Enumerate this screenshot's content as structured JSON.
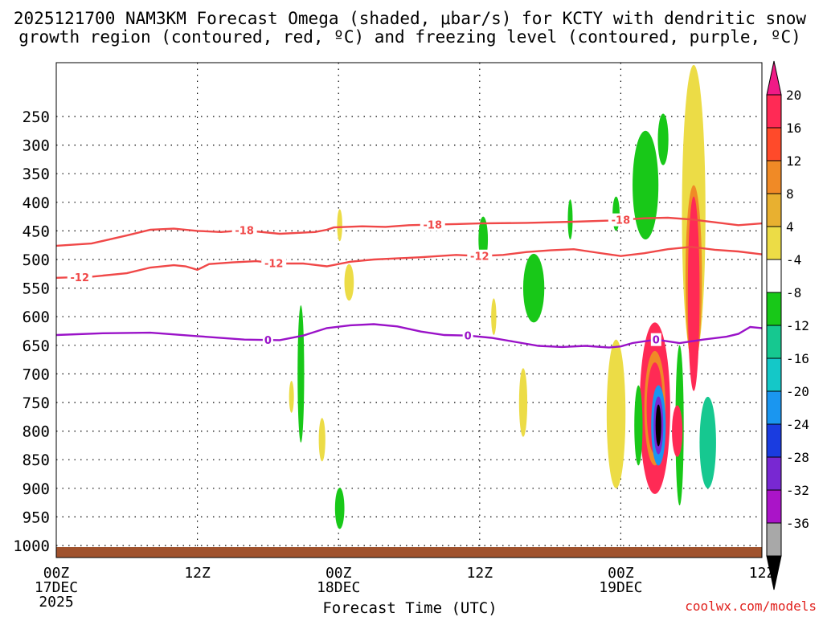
{
  "chart_data": {
    "type": "heatmap",
    "title_line1": "2025121700 NAM3KM Forecast Omega (shaded, μbar/s) for KCTY with dendritic snow",
    "title_line2": "growth region (contoured, red, ºC) and freezing level (contoured, purple, ºC)",
    "xlabel": "Forecast Time (UTC)",
    "credit": "coolwx.com/models",
    "x_ticks": [
      {
        "hour": 0,
        "l1": "00Z",
        "l2": "17DEC",
        "l3": "2025"
      },
      {
        "hour": 12,
        "l1": "12Z",
        "l2": "",
        "l3": ""
      },
      {
        "hour": 24,
        "l1": "00Z",
        "l2": "18DEC",
        "l3": ""
      },
      {
        "hour": 36,
        "l1": "12Z",
        "l2": "",
        "l3": ""
      },
      {
        "hour": 48,
        "l1": "00Z",
        "l2": "19DEC",
        "l3": ""
      },
      {
        "hour": 60,
        "l1": "12Z",
        "l2": "",
        "l3": ""
      }
    ],
    "xlim_hours": [
      0,
      60
    ],
    "y_ticks": [
      250,
      300,
      350,
      400,
      450,
      500,
      550,
      600,
      650,
      700,
      750,
      800,
      850,
      900,
      950,
      1000
    ],
    "ylim_hpa": [
      190,
      1040
    ],
    "colorbar": {
      "labels": [
        "20",
        "16",
        "12",
        "8",
        "4",
        "-4",
        "-8",
        "-12",
        "-16",
        "-20",
        "-24",
        "-28",
        "-32",
        "-36"
      ],
      "colors": [
        "#ff2a55",
        "#ff4a2a",
        "#f08a26",
        "#e8b030",
        "#ecdc46",
        "#ffffff",
        "#18c818",
        "#16c890",
        "#14c8c8",
        "#1a96f0",
        "#1a3ce0",
        "#7828d2",
        "#aa14c8",
        "#a8a8a8"
      ],
      "top_arrow": "#f01a86",
      "bottom_arrow": "#000000"
    },
    "contours": {
      "minus18": {
        "color": "#f04848",
        "label": "-18",
        "points": [
          [
            0,
            476
          ],
          [
            3,
            472
          ],
          [
            6,
            458
          ],
          [
            8,
            448
          ],
          [
            10,
            446
          ],
          [
            12,
            450
          ],
          [
            14,
            452
          ],
          [
            16,
            449
          ],
          [
            19,
            455
          ],
          [
            22,
            452
          ],
          [
            23,
            448
          ],
          [
            23.6,
            444
          ],
          [
            26,
            442
          ],
          [
            28,
            443
          ],
          [
            30,
            440
          ],
          [
            32,
            439
          ],
          [
            34,
            438
          ],
          [
            36,
            437
          ],
          [
            40,
            436
          ],
          [
            44,
            434
          ],
          [
            47,
            432
          ],
          [
            50,
            428
          ],
          [
            52,
            427
          ],
          [
            54,
            430
          ],
          [
            56,
            435
          ],
          [
            58,
            440
          ],
          [
            60,
            437
          ]
        ],
        "labels_at": [
          16,
          32,
          48
        ]
      },
      "minus12": {
        "color": "#f04848",
        "label": "-12",
        "points": [
          [
            0,
            532
          ],
          [
            3,
            530
          ],
          [
            6,
            524
          ],
          [
            8,
            514
          ],
          [
            10,
            510
          ],
          [
            11,
            512
          ],
          [
            12,
            518
          ],
          [
            13,
            508
          ],
          [
            15,
            505
          ],
          [
            17,
            503
          ],
          [
            19,
            507
          ],
          [
            21,
            507
          ],
          [
            23,
            512
          ],
          [
            25,
            504
          ],
          [
            27,
            500
          ],
          [
            29,
            498
          ],
          [
            31,
            496
          ],
          [
            34,
            492
          ],
          [
            36,
            494
          ],
          [
            38,
            492
          ],
          [
            40,
            487
          ],
          [
            42,
            484
          ],
          [
            44,
            482
          ],
          [
            46,
            488
          ],
          [
            48,
            494
          ],
          [
            50,
            489
          ],
          [
            52,
            482
          ],
          [
            54,
            478
          ],
          [
            56,
            483
          ],
          [
            58,
            486
          ],
          [
            60,
            491
          ]
        ],
        "labels_at": [
          2,
          18.5,
          36
        ]
      },
      "zero": {
        "color": "#9a12c8",
        "label": "0",
        "points": [
          [
            0,
            632
          ],
          [
            4,
            629
          ],
          [
            8,
            628
          ],
          [
            12,
            634
          ],
          [
            16,
            640
          ],
          [
            19,
            641
          ],
          [
            21,
            633
          ],
          [
            23,
            620
          ],
          [
            25,
            615
          ],
          [
            27,
            613
          ],
          [
            29,
            617
          ],
          [
            31,
            626
          ],
          [
            33,
            632
          ],
          [
            35,
            633
          ],
          [
            37,
            637
          ],
          [
            39,
            644
          ],
          [
            41,
            651
          ],
          [
            43,
            653
          ],
          [
            45,
            651
          ],
          [
            47,
            654
          ],
          [
            48,
            652
          ],
          [
            49,
            646
          ],
          [
            51,
            640
          ],
          [
            53,
            646
          ],
          [
            55,
            640
          ],
          [
            57,
            635
          ],
          [
            58,
            630
          ],
          [
            59,
            618
          ],
          [
            60,
            620
          ]
        ],
        "labels_at": [
          18,
          35,
          51
        ]
      }
    },
    "omega_features": [
      {
        "hour": 24.1,
        "p": 440,
        "rh": 0.22,
        "rp": 28,
        "value": 4
      },
      {
        "hour": 24.9,
        "p": 540,
        "rh": 0.4,
        "rp": 32,
        "value": 4
      },
      {
        "hour": 20.8,
        "p": 700,
        "rh": 0.28,
        "rp": 120,
        "value": -8
      },
      {
        "hour": 20.0,
        "p": 740,
        "rh": 0.15,
        "rp": 28,
        "value": 4
      },
      {
        "hour": 22.6,
        "p": 815,
        "rh": 0.28,
        "rp": 38,
        "value": 4
      },
      {
        "hour": 24.1,
        "p": 935,
        "rh": 0.4,
        "rp": 36,
        "value": -8
      },
      {
        "hour": 36.3,
        "p": 465,
        "rh": 0.4,
        "rp": 40,
        "value": -8
      },
      {
        "hour": 37.2,
        "p": 600,
        "rh": 0.22,
        "rp": 32,
        "value": 4
      },
      {
        "hour": 40.6,
        "p": 550,
        "rh": 0.9,
        "rp": 60,
        "value": -8
      },
      {
        "hour": 39.7,
        "p": 750,
        "rh": 0.35,
        "rp": 60,
        "value": 4
      },
      {
        "hour": 43.7,
        "p": 430,
        "rh": 0.18,
        "rp": 35,
        "value": -8
      },
      {
        "hour": 47.6,
        "p": 420,
        "rh": 0.3,
        "rp": 30,
        "value": -8
      },
      {
        "hour": 50.1,
        "p": 370,
        "rh": 1.1,
        "rp": 95,
        "value": -8
      },
      {
        "hour": 51.6,
        "p": 290,
        "rh": 0.45,
        "rp": 45,
        "value": -8
      },
      {
        "hour": 54.2,
        "p": 420,
        "rh": 1.0,
        "rp": 260,
        "value": 4
      },
      {
        "hour": 47.6,
        "p": 770,
        "rh": 0.8,
        "rp": 130,
        "value": 4
      },
      {
        "hour": 50.9,
        "p": 760,
        "rh": 1.3,
        "rp": 150,
        "value": 20
      }
    ]
  }
}
